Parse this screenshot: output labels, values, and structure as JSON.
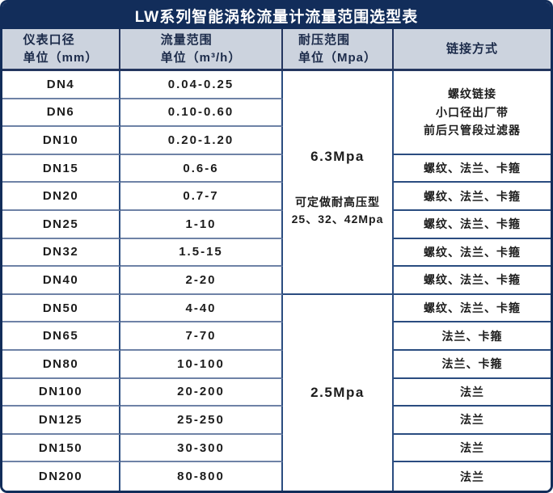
{
  "page": {
    "title": "LW系列智能涡轮流量计流量范围选型表"
  },
  "colors": {
    "title_bar_bg": "#122d5a",
    "header_bg": "#ccd3de",
    "outer_border": "#122d5a",
    "grid_line_navy": "#2a4c80",
    "row_separator_slate": "#6e82a6",
    "title_text": "#ffffff",
    "header_text": "#1c2b4a",
    "body_text": "#1c1c1c"
  },
  "table": {
    "headers": {
      "diameter": {
        "line1": "仪表口径",
        "line2": "单位（mm）"
      },
      "flow": {
        "line1": "流量范围",
        "line2": "单位（m³/h）"
      },
      "pressure": {
        "line1": "耐压范围",
        "line2": "单位（Mpa）"
      },
      "connection": {
        "line1": "链接方式"
      }
    },
    "rows": [
      {
        "dn": "DN4",
        "range": "0.04-0.25",
        "connection": ""
      },
      {
        "dn": "DN6",
        "range": "0.10-0.60",
        "connection": ""
      },
      {
        "dn": "DN10",
        "range": "0.20-1.20",
        "connection": ""
      },
      {
        "dn": "DN15",
        "range": "0.6-6",
        "connection": "螺纹、法兰、卡箍"
      },
      {
        "dn": "DN20",
        "range": "0.7-7",
        "connection": "螺纹、法兰、卡箍"
      },
      {
        "dn": "DN25",
        "range": "1-10",
        "connection": "螺纹、法兰、卡箍"
      },
      {
        "dn": "DN32",
        "range": "1.5-15",
        "connection": "螺纹、法兰、卡箍"
      },
      {
        "dn": "DN40",
        "range": "2-20",
        "connection": "螺纹、法兰、卡箍"
      },
      {
        "dn": "DN50",
        "range": "4-40",
        "connection": "螺纹、法兰、卡箍"
      },
      {
        "dn": "DN65",
        "range": "7-70",
        "connection": "法兰、卡箍"
      },
      {
        "dn": "DN80",
        "range": "10-100",
        "connection": "法兰、卡箍"
      },
      {
        "dn": "DN100",
        "range": "20-200",
        "connection": "法兰"
      },
      {
        "dn": "DN125",
        "range": "25-250",
        "connection": "法兰"
      },
      {
        "dn": "DN150",
        "range": "30-300",
        "connection": "法兰"
      },
      {
        "dn": "DN200",
        "range": "80-800",
        "connection": "法兰"
      }
    ],
    "connection_merged": {
      "applies_to": "DN4-DN10",
      "line1": "螺纹链接",
      "line2": "小口径出厂带",
      "line3": "前后只管段过滤器"
    },
    "pressure_groups": [
      {
        "applies_to": "DN4-DN40",
        "value": "6.3Mpa",
        "note_line1": "可定做耐高压型",
        "note_line2": "25、32、42Mpa"
      },
      {
        "applies_to": "DN50-DN200",
        "value": "2.5Mpa",
        "note_line1": "",
        "note_line2": ""
      }
    ]
  }
}
